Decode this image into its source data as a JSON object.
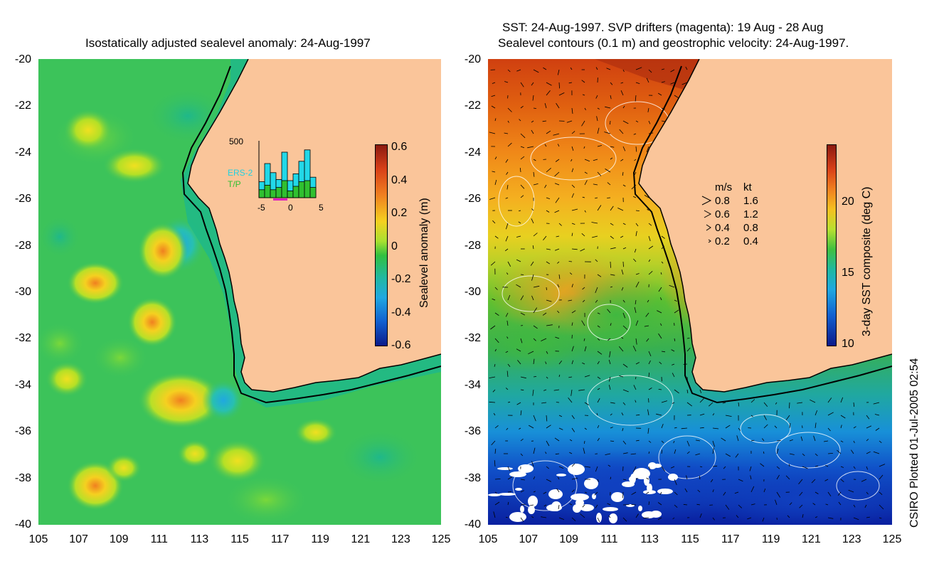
{
  "left_panel": {
    "title": "Isostatically adjusted sealevel anomaly: 24-Aug-1997",
    "colorbar_label": "Sealevel anomaly (m)",
    "colorbar_ticks": [
      "0.6",
      "0.4",
      "0.2",
      "0",
      "-0.2",
      "-0.4",
      "-0.6"
    ],
    "colorbar_range": [
      -0.6,
      0.6
    ],
    "inset": {
      "ymax_label": "500",
      "series": [
        "ERS-2",
        "T/P"
      ],
      "x_ticks": [
        "-5",
        "0",
        "5"
      ],
      "ers2_counts": [
        140,
        300,
        220,
        160,
        400,
        150,
        210,
        320,
        420,
        180
      ],
      "tp_counts": [
        70,
        110,
        70,
        90,
        150,
        60,
        100,
        140,
        150,
        90
      ]
    }
  },
  "right_panel": {
    "title_line1": "SST: 24-Aug-1997. SVP drifters (magenta): 19 Aug - 28 Aug",
    "title_line2": "Sealevel contours (0.1 m) and geostrophic velocity: 24-Aug-1997.",
    "colorbar_label": "3-day SST composite (deg C)",
    "colorbar_ticks": [
      "20",
      "15",
      "10"
    ],
    "colorbar_range": [
      10,
      24
    ],
    "velocity_legend": {
      "header_ms": "m/s",
      "header_kt": "kt",
      "rows": [
        {
          "ms": "0.8",
          "kt": "1.6"
        },
        {
          "ms": "0.6",
          "kt": "1.2"
        },
        {
          "ms": "0.4",
          "kt": "0.8"
        },
        {
          "ms": "0.2",
          "kt": "0.4"
        }
      ]
    }
  },
  "axes": {
    "lat_ticks": [
      "-20",
      "-22",
      "-24",
      "-26",
      "-28",
      "-30",
      "-32",
      "-34",
      "-36",
      "-38",
      "-40"
    ],
    "lon_ticks": [
      "105",
      "107",
      "109",
      "111",
      "113",
      "115",
      "117",
      "119",
      "121",
      "123",
      "125"
    ],
    "lat_range": [
      -40,
      -20
    ],
    "lon_range": [
      105,
      125
    ]
  },
  "footer": "CSIRO Plotted 01-Jul-2005 02:54",
  "colors": {
    "land": "#fac59a",
    "ocean_green": "#2fbf50",
    "coast_line": "#000000"
  }
}
